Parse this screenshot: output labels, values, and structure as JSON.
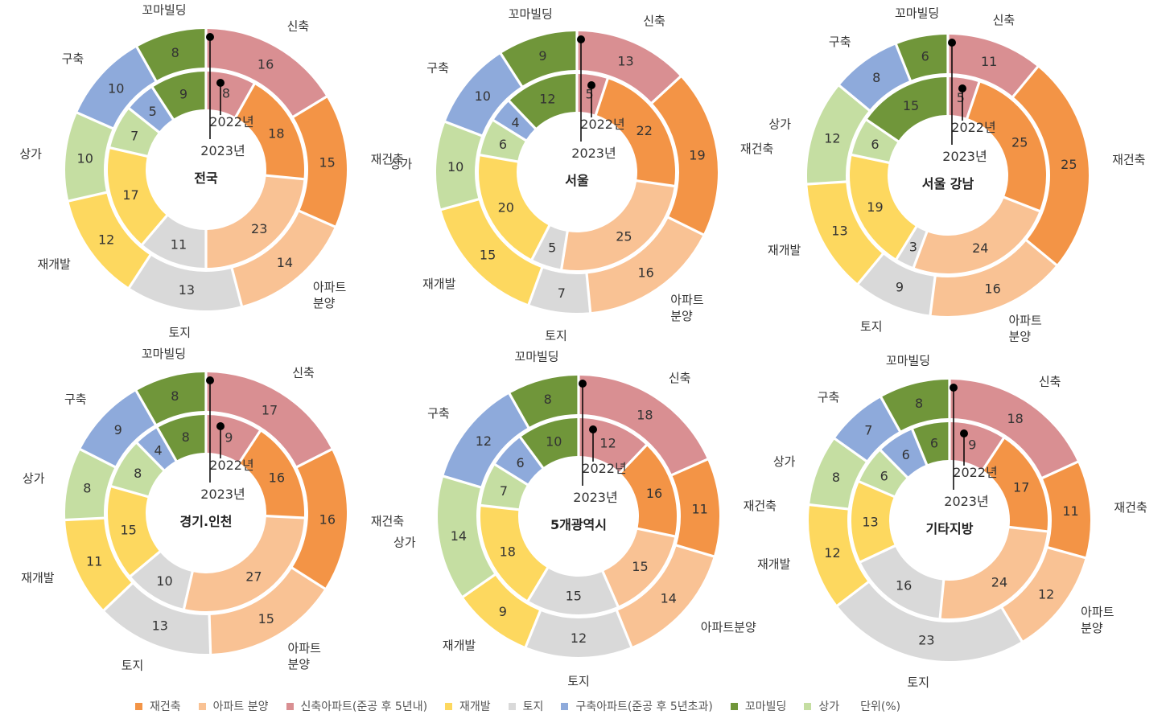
{
  "colors": {
    "재건축": "#F39446",
    "아파트분양": "#F9C294",
    "신축": "#D98F92",
    "재개발": "#FDD85F",
    "토지": "#D9D9D9",
    "구축": "#8EAADB",
    "꼬마빌딩": "#70963A",
    "상가": "#C5DEA2"
  },
  "legend": {
    "items": [
      {
        "key": "재건축",
        "label": "재건축"
      },
      {
        "key": "아파트분양",
        "label": "아파트 분양"
      },
      {
        "key": "신축",
        "label": "신축아파트(준공 후 5년내)"
      },
      {
        "key": "재개발",
        "label": "재개발"
      },
      {
        "key": "토지",
        "label": "토지"
      },
      {
        "key": "구축",
        "label": "구축아파트(준공 후 5년초과)"
      },
      {
        "key": "꼬마빌딩",
        "label": "꼬마빌딩"
      },
      {
        "key": "상가",
        "label": "상가"
      }
    ],
    "unit": "단위(%)"
  },
  "chart_data": [
    {
      "type": "donut",
      "title": "전국",
      "inner_label": "2022년",
      "outer_label": "2023년",
      "categories": [
        "신축",
        "재건축",
        "아파트분양",
        "토지",
        "재개발",
        "상가",
        "구축",
        "꼬마빌딩"
      ],
      "labels": {
        "신축": "신축",
        "재건축": "재건축",
        "아파트분양": "아파트\n분양",
        "토지": "토지",
        "재개발": "재개발",
        "상가": "상가",
        "구축": "구축",
        "꼬마빌딩": "꼬마빌딩"
      },
      "series": [
        {
          "name": "2022년",
          "values": [
            8,
            18,
            23,
            11,
            17,
            7,
            5,
            9
          ]
        },
        {
          "name": "2023년",
          "values": [
            16,
            15,
            14,
            13,
            12,
            10,
            10,
            8
          ]
        }
      ]
    },
    {
      "type": "donut",
      "title": "서울",
      "inner_label": "2022년",
      "outer_label": "2023년",
      "categories": [
        "신축",
        "재건축",
        "아파트분양",
        "토지",
        "재개발",
        "상가",
        "구축",
        "꼬마빌딩"
      ],
      "labels": {
        "신축": "신축",
        "재건축": "재건축",
        "아파트분양": "아파트\n분양",
        "토지": "토지",
        "재개발": "재개발",
        "상가": "상가",
        "구축": "구축",
        "꼬마빌딩": "꼬마빌딩"
      },
      "series": [
        {
          "name": "2022년",
          "values": [
            5,
            22,
            25,
            5,
            20,
            6,
            4,
            12
          ]
        },
        {
          "name": "2023년",
          "values": [
            13,
            19,
            16,
            7,
            15,
            10,
            10,
            9
          ]
        }
      ]
    },
    {
      "type": "donut",
      "title": "서울 강남",
      "inner_label": "2022년",
      "outer_label": "2023년",
      "categories": [
        "신축",
        "재건축",
        "아파트분양",
        "토지",
        "재개발",
        "상가",
        "구축",
        "꼬마빌딩"
      ],
      "labels": {
        "신축": "신축",
        "재건축": "재건축",
        "아파트분양": "아파트\n분양",
        "토지": "토지",
        "재개발": "재개발",
        "상가": "상가",
        "구축": "구축",
        "꼬마빌딩": "꼬마빌딩"
      },
      "series": [
        {
          "name": "2022년",
          "values": [
            5,
            25,
            24,
            3,
            19,
            6,
            0,
            15
          ]
        },
        {
          "name": "2023년",
          "values": [
            11,
            25,
            16,
            9,
            13,
            12,
            8,
            6
          ]
        }
      ]
    },
    {
      "type": "donut",
      "title": "경기.인천",
      "inner_label": "2022년",
      "outer_label": "2023년",
      "categories": [
        "신축",
        "재건축",
        "아파트분양",
        "토지",
        "재개발",
        "상가",
        "구축",
        "꼬마빌딩"
      ],
      "labels": {
        "신축": "신축",
        "재건축": "재건축",
        "아파트분양": "아파트\n분양",
        "토지": "토지",
        "재개발": "재개발",
        "상가": "상가",
        "구축": "구축",
        "꼬마빌딩": "꼬마빌딩"
      },
      "series": [
        {
          "name": "2022년",
          "values": [
            9,
            16,
            27,
            10,
            15,
            8,
            4,
            8
          ]
        },
        {
          "name": "2023년",
          "values": [
            17,
            16,
            15,
            13,
            11,
            8,
            9,
            8
          ]
        }
      ]
    },
    {
      "type": "donut",
      "title": "5개광역시",
      "inner_label": "2022년",
      "outer_label": "2023년",
      "categories": [
        "신축",
        "재건축",
        "아파트분양",
        "토지",
        "재개발",
        "상가",
        "구축",
        "꼬마빌딩"
      ],
      "labels": {
        "신축": "신축",
        "재건축": "재건축",
        "아파트분양": "아파트분양",
        "토지": "토지",
        "재개발": "재개발",
        "상가": "상가",
        "구축": "구축",
        "꼬마빌딩": "꼬마빌딩"
      },
      "series": [
        {
          "name": "2022년",
          "values": [
            12,
            16,
            15,
            15,
            18,
            7,
            6,
            10
          ]
        },
        {
          "name": "2023년",
          "values": [
            18,
            11,
            14,
            12,
            9,
            14,
            12,
            8
          ]
        }
      ]
    },
    {
      "type": "donut",
      "title": "기타지방",
      "inner_label": "2022년",
      "outer_label": "2023년",
      "categories": [
        "신축",
        "재건축",
        "아파트분양",
        "토지",
        "재개발",
        "상가",
        "구축",
        "꼬마빌딩"
      ],
      "labels": {
        "신축": "신축",
        "재건축": "재건축",
        "아파트분양": "아파트\n분양",
        "토지": "토지",
        "재개발": "재개발",
        "상가": "상가",
        "구축": "구축",
        "꼬마빌딩": "꼬마빌딩"
      },
      "series": [
        {
          "name": "2022년",
          "values": [
            9,
            17,
            24,
            16,
            13,
            6,
            6,
            6
          ]
        },
        {
          "name": "2023년",
          "values": [
            18,
            11,
            12,
            23,
            12,
            8,
            7,
            8
          ]
        }
      ]
    }
  ]
}
